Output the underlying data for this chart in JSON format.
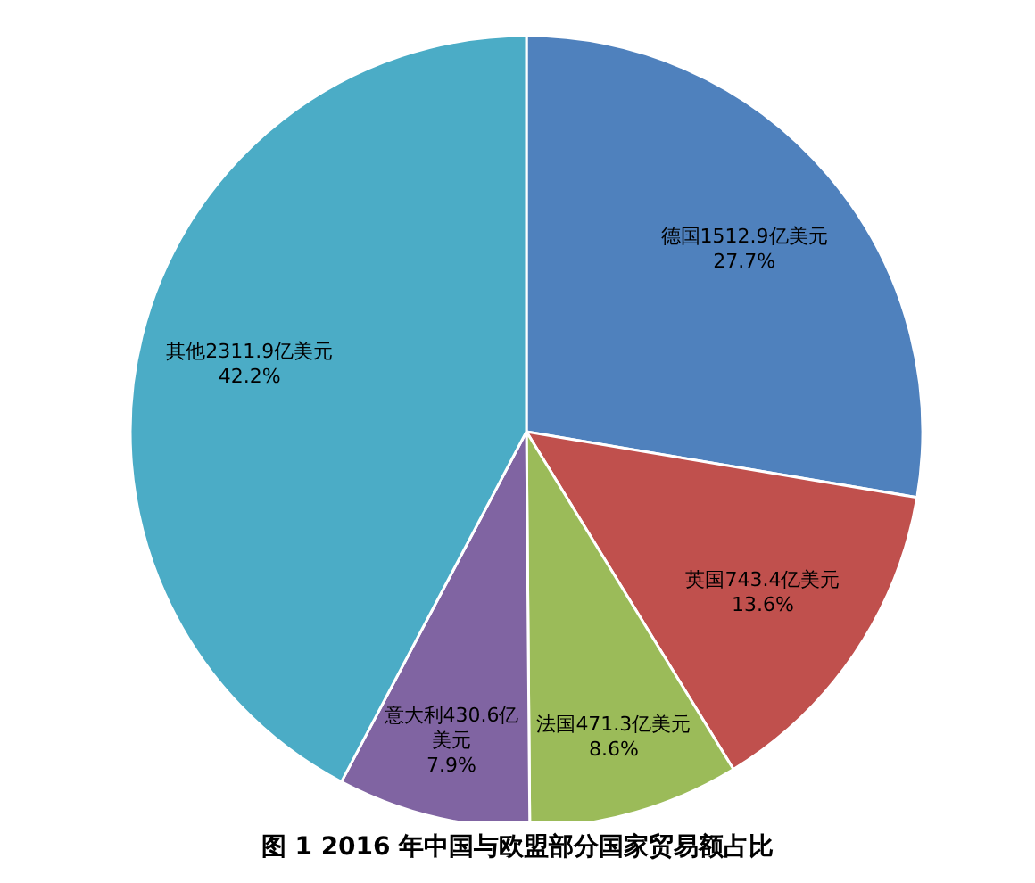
{
  "chart_data": {
    "type": "pie",
    "title": "图 1 2016 年中国与欧盟部分国家贸易额占比",
    "categories": [
      "德国",
      "英国",
      "法国",
      "意大利",
      "其他"
    ],
    "values": [
      1512.9,
      743.4,
      471.3,
      430.6,
      2311.9
    ],
    "colors": [
      "#4f81bd",
      "#c0504d",
      "#9bbb59",
      "#8064a2",
      "#4bacc6"
    ],
    "value_labels": [
      "1512.9亿美元\n27.7%",
      "743.4亿美元\n13.6%",
      "471.3亿美元\n8.6%",
      "430.6亿美元\n7.9%",
      "2311.9亿美元\n42.2%"
    ]
  }
}
